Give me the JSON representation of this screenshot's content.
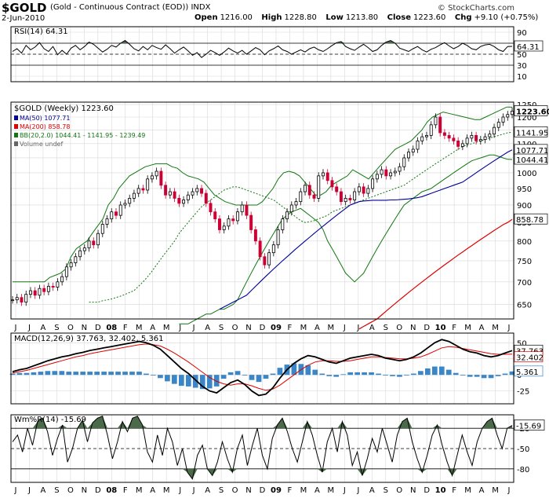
{
  "header": {
    "symbol": "$GOLD",
    "description": "(Gold - Continuous Contract (EOD))  INDX",
    "date": "2-Jun-2010",
    "open_label": "Open",
    "open": "1216.00",
    "high_label": "High",
    "high": "1228.80",
    "low_label": "Low",
    "low": "1213.80",
    "close_label": "Close",
    "close": "1223.60",
    "chg_label": "Chg",
    "chg": "+9.10 (+0.75%)",
    "credit": "© StockCharts.com"
  },
  "colors": {
    "up": "#000000",
    "down": "#cc0033",
    "ma50": "#000099",
    "ma200": "#dd0000",
    "bb": "#117711",
    "macd": "#000000",
    "signal": "#dd0000",
    "hist": "#3a86c6",
    "wm_fill": "#4a6a4a",
    "rsi_fill": "#4a6a4a",
    "grid": "#d8d8d8"
  },
  "chart_data": [
    {
      "panel": "RSI",
      "type": "line",
      "label": "RSI(14) 64.31",
      "last_value": "64.31",
      "y_ticks": [
        "90",
        "70",
        "50",
        "30",
        "10"
      ],
      "ylim": [
        0,
        100
      ],
      "reference_lines": [
        70,
        30
      ],
      "values": [
        55,
        60,
        52,
        66,
        58,
        63,
        71,
        60,
        55,
        64,
        49,
        57,
        50,
        61,
        66,
        58,
        64,
        72,
        68,
        61,
        54,
        59,
        66,
        63,
        70,
        75,
        68,
        60,
        56,
        64,
        58,
        66,
        62,
        59,
        67,
        60,
        52,
        58,
        63,
        56,
        48,
        53,
        44,
        50,
        57,
        53,
        48,
        54,
        61,
        56,
        52,
        57,
        50,
        56,
        62,
        58,
        49,
        56,
        60,
        65,
        58,
        55,
        50,
        54,
        58,
        54,
        60,
        63,
        58,
        55,
        60,
        66,
        71,
        73,
        64,
        60,
        57,
        63,
        68,
        62,
        55,
        58,
        66,
        72,
        75,
        70,
        61,
        58,
        55,
        60,
        64,
        58,
        54,
        59,
        62,
        67,
        71,
        65,
        60,
        64,
        70,
        66,
        60,
        58,
        64,
        67,
        68,
        64,
        58,
        55,
        64,
        64.31
      ]
    },
    {
      "panel": "Price",
      "type": "candlestick",
      "label": "$GOLD (Weekly) 1223.60",
      "legend": [
        {
          "text": "MA(50) 1077.71",
          "color": "#000099"
        },
        {
          "text": "MA(200) 858.78",
          "color": "#dd0000"
        },
        {
          "text": "BB(20,2.0) 1044.41 - 1141.95 - 1239.49",
          "color": "#117711"
        },
        {
          "text": "Volume undef",
          "color": "#666666"
        }
      ],
      "y_ticks": [
        "1250",
        "1200",
        "1150",
        "1100",
        "1050",
        "1000",
        "950",
        "900",
        "850",
        "800",
        "750",
        "700",
        "650"
      ],
      "ylim": [
        620,
        1260
      ],
      "log_scale": true,
      "last_labels": [
        {
          "text": "1223.60",
          "value": 1223.6,
          "bold": true
        },
        {
          "text": "1141.95",
          "value": 1141.95
        },
        {
          "text": "1077.71",
          "value": 1077.71
        },
        {
          "text": "1044.41",
          "value": 1044.41
        },
        {
          "text": "858.78",
          "value": 858.78
        }
      ],
      "close": [
        660,
        665,
        655,
        672,
        680,
        670,
        685,
        678,
        690,
        688,
        700,
        712,
        735,
        745,
        760,
        775,
        782,
        800,
        790,
        820,
        845,
        860,
        880,
        870,
        900,
        905,
        920,
        935,
        950,
        945,
        980,
        990,
        1005,
        960,
        930,
        940,
        920,
        905,
        915,
        930,
        940,
        950,
        935,
        905,
        880,
        860,
        830,
        840,
        860,
        855,
        880,
        900,
        870,
        830,
        800,
        760,
        740,
        770,
        790,
        830,
        860,
        880,
        900,
        910,
        940,
        960,
        930,
        920,
        990,
        1000,
        975,
        955,
        940,
        910,
        920,
        915,
        940,
        955,
        935,
        950,
        980,
        995,
        1010,
        990,
        1000,
        1005,
        1020,
        1050,
        1070,
        1080,
        1110,
        1125,
        1130,
        1170,
        1200,
        1140,
        1130,
        1120,
        1110,
        1090,
        1100,
        1120,
        1130,
        1110,
        1115,
        1125,
        1135,
        1160,
        1180,
        1200,
        1210,
        1223.6
      ],
      "bb_upper": [
        700,
        700,
        700,
        700,
        700,
        700,
        700,
        710,
        715,
        720,
        730,
        760,
        780,
        790,
        800,
        820,
        840,
        860,
        900,
        920,
        950,
        970,
        990,
        1000,
        1010,
        1020,
        1025,
        1030,
        1030,
        1030,
        1020,
        1015,
        1000,
        990,
        985,
        980,
        970,
        950,
        930,
        920,
        910,
        905,
        900,
        900,
        900,
        900,
        900,
        910,
        930,
        950,
        980,
        1000,
        1005,
        1000,
        990,
        970,
        950,
        930,
        930,
        940,
        960,
        970,
        980,
        990,
        1010,
        1000,
        990,
        980,
        1000,
        1020,
        1040,
        1060,
        1080,
        1090,
        1100,
        1110,
        1130,
        1150,
        1180,
        1200,
        1210,
        1220,
        1215,
        1210,
        1205,
        1200,
        1195,
        1190,
        1190,
        1200,
        1210,
        1220,
        1230,
        1240,
        1239.49
      ],
      "bb_mid": [
        655,
        655,
        655,
        658,
        660,
        662,
        665,
        668,
        672,
        676,
        680,
        690,
        700,
        712,
        725,
        740,
        755,
        770,
        785,
        800,
        820,
        835,
        850,
        865,
        880,
        895,
        905,
        915,
        925,
        935,
        945,
        950,
        955,
        955,
        950,
        945,
        940,
        935,
        930,
        925,
        920,
        915,
        905,
        895,
        885,
        875,
        865,
        855,
        850,
        852,
        855,
        860,
        865,
        870,
        880,
        885,
        890,
        895,
        900,
        905,
        910,
        915,
        920,
        925,
        930,
        935,
        940,
        945,
        950,
        955,
        960,
        970,
        980,
        990,
        1000,
        1010,
        1020,
        1030,
        1040,
        1050,
        1060,
        1070,
        1080,
        1090,
        1095,
        1100,
        1105,
        1110,
        1115,
        1120,
        1125,
        1130,
        1135,
        1140,
        1141.95
      ],
      "bb_lower": [
        610,
        610,
        610,
        615,
        620,
        625,
        630,
        630,
        635,
        640,
        640,
        645,
        650,
        660,
        680,
        700,
        720,
        740,
        760,
        780,
        800,
        820,
        840,
        860,
        870,
        880,
        885,
        890,
        880,
        870,
        860,
        850,
        830,
        800,
        780,
        760,
        740,
        720,
        710,
        700,
        710,
        720,
        740,
        760,
        780,
        800,
        820,
        840,
        860,
        880,
        900,
        910,
        920,
        930,
        940,
        945,
        950,
        960,
        970,
        980,
        990,
        1000,
        1010,
        1020,
        1030,
        1040,
        1045,
        1050,
        1055,
        1060,
        1060,
        1055,
        1050,
        1045,
        1044.41
      ],
      "ma50": [
        640,
        645,
        650,
        655,
        660,
        665,
        670,
        680,
        690,
        700,
        710,
        720,
        730,
        740,
        750,
        760,
        770,
        780,
        790,
        800,
        810,
        820,
        830,
        840,
        850,
        860,
        870,
        880,
        890,
        900,
        905,
        910,
        912,
        913,
        914,
        914,
        914,
        914,
        915,
        915,
        916,
        917,
        918,
        920,
        922,
        925,
        930,
        935,
        940,
        945,
        950,
        955,
        960,
        965,
        970,
        980,
        990,
        1000,
        1010,
        1020,
        1030,
        1040,
        1050,
        1060,
        1070,
        1077.71
      ],
      "ma200": [
        600,
        605,
        610,
        615,
        620,
        628,
        636,
        644,
        652,
        660,
        668,
        676,
        684,
        692,
        700,
        708,
        716,
        724,
        732,
        740,
        748,
        756,
        764,
        772,
        780,
        788,
        796,
        804,
        812,
        820,
        828,
        836,
        844,
        850,
        858.78
      ]
    },
    {
      "panel": "MACD",
      "type": "line",
      "label": "MACD(12,26,9) 37.763, 32.402, 5.361",
      "y_ticks": [
        "50",
        "25",
        "0",
        "-25"
      ],
      "ylim": [
        -45,
        65
      ],
      "last_labels": [
        {
          "text": "37.763",
          "value": 37.763
        },
        {
          "text": "32.402",
          "value": 32.402
        },
        {
          "text": "5.361",
          "value": 5.361
        }
      ],
      "macd": [
        5,
        8,
        10,
        14,
        18,
        22,
        25,
        28,
        30,
        33,
        35,
        38,
        40,
        42,
        44,
        46,
        48,
        50,
        52,
        50,
        46,
        40,
        30,
        20,
        10,
        2,
        -8,
        -18,
        -25,
        -28,
        -20,
        -12,
        -8,
        -15,
        -25,
        -32,
        -30,
        -20,
        -5,
        8,
        18,
        25,
        30,
        28,
        24,
        20,
        18,
        22,
        26,
        28,
        30,
        32,
        30,
        26,
        24,
        22,
        24,
        28,
        34,
        42,
        50,
        55,
        52,
        46,
        40,
        36,
        34,
        30,
        28,
        30,
        34,
        37.763
      ],
      "signal": [
        3,
        5,
        7,
        10,
        13,
        16,
        19,
        22,
        25,
        28,
        30,
        33,
        35,
        37,
        39,
        41,
        43,
        45,
        47,
        48,
        47,
        45,
        40,
        34,
        27,
        20,
        12,
        4,
        -4,
        -10,
        -14,
        -16,
        -14,
        -14,
        -17,
        -21,
        -24,
        -22,
        -16,
        -8,
        0,
        8,
        15,
        20,
        22,
        22,
        21,
        21,
        22,
        24,
        26,
        28,
        28,
        27,
        26,
        25,
        25,
        26,
        28,
        32,
        37,
        42,
        44,
        43,
        41,
        39,
        37,
        35,
        33,
        32,
        32,
        32.402
      ],
      "hist": [
        2,
        3,
        3,
        4,
        5,
        6,
        6,
        6,
        5,
        5,
        5,
        5,
        5,
        5,
        5,
        5,
        5,
        5,
        5,
        2,
        -1,
        -5,
        -10,
        -14,
        -17,
        -18,
        -20,
        -22,
        -21,
        -18,
        -6,
        4,
        6,
        -1,
        -8,
        -11,
        -6,
        2,
        11,
        16,
        18,
        17,
        15,
        8,
        2,
        -2,
        -3,
        1,
        4,
        4,
        4,
        4,
        2,
        -1,
        -2,
        -3,
        -1,
        2,
        6,
        10,
        13,
        13,
        8,
        3,
        -1,
        -3,
        -3,
        -5,
        -5,
        -2,
        2,
        5.361
      ]
    },
    {
      "panel": "Williams %R",
      "type": "line",
      "label": "Wm%R(14) -15.69",
      "last_value": "-15.69",
      "y_ticks": [
        "-20",
        "-50",
        "-80"
      ],
      "ylim": [
        -100,
        0
      ],
      "reference_lines": [
        -20,
        -80
      ],
      "values": [
        -40,
        -30,
        -55,
        -20,
        -45,
        -10,
        -5,
        -25,
        -60,
        -35,
        -15,
        -70,
        -50,
        -20,
        -8,
        -40,
        -12,
        -5,
        -2,
        -30,
        -65,
        -40,
        -10,
        -25,
        -5,
        -2,
        -15,
        -55,
        -70,
        -30,
        -60,
        -20,
        -40,
        -75,
        -50,
        -85,
        -95,
        -60,
        -45,
        -80,
        -90,
        -70,
        -40,
        -65,
        -85,
        -50,
        -30,
        -75,
        -45,
        -20,
        -60,
        -80,
        -35,
        -15,
        -5,
        -25,
        -50,
        -70,
        -40,
        -10,
        -30,
        -60,
        -85,
        -40,
        -20,
        -55,
        -10,
        -30,
        -75,
        -55,
        -90,
        -65,
        -35,
        -55,
        -20,
        -45,
        -70,
        -30,
        -10,
        -5,
        -40,
        -65,
        -85,
        -60,
        -30,
        -15,
        -45,
        -70,
        -90,
        -60,
        -30,
        -55,
        -75,
        -40,
        -20,
        -10,
        -5,
        -30,
        -50,
        -20,
        -15.69
      ]
    }
  ],
  "x_axis": {
    "labels": [
      "J",
      "J",
      "A",
      "S",
      "O",
      "N",
      "D",
      "08",
      "F",
      "M",
      "A",
      "M",
      "J",
      "J",
      "A",
      "S",
      "O",
      "N",
      "D",
      "09",
      "F",
      "M",
      "A",
      "M",
      "J",
      "J",
      "A",
      "S",
      "O",
      "N",
      "D",
      "10",
      "F",
      "M",
      "A",
      "M",
      "J"
    ],
    "bold": [
      "08",
      "09",
      "10"
    ]
  }
}
